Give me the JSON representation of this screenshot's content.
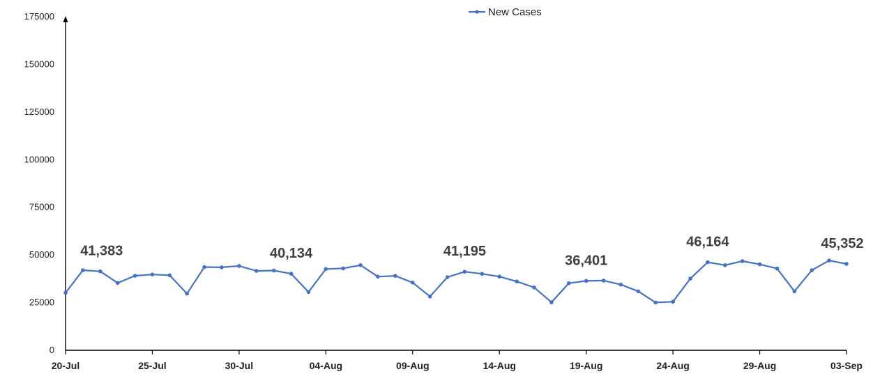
{
  "chart_data": {
    "type": "line",
    "legend": {
      "position": "top-center",
      "label": "New Cases"
    },
    "ylim": [
      0,
      175000
    ],
    "y_ticks": [
      "0",
      "25000",
      "50000",
      "75000",
      "100000",
      "125000",
      "150000",
      "175000"
    ],
    "y_tick_values": [
      0,
      25000,
      50000,
      75000,
      100000,
      125000,
      150000,
      175000
    ],
    "x_ticks": [
      "20-Jul",
      "25-Jul",
      "30-Jul",
      "04-Aug",
      "09-Aug",
      "14-Aug",
      "19-Aug",
      "24-Aug",
      "29-Aug",
      "03-Sep"
    ],
    "x_tick_indices": [
      0,
      5,
      10,
      15,
      20,
      25,
      30,
      35,
      40,
      45
    ],
    "grid": false,
    "x": [
      "20-Jul",
      "21-Jul",
      "22-Jul",
      "23-Jul",
      "24-Jul",
      "25-Jul",
      "26-Jul",
      "27-Jul",
      "28-Jul",
      "29-Jul",
      "30-Jul",
      "31-Jul",
      "01-Aug",
      "02-Aug",
      "03-Aug",
      "04-Aug",
      "05-Aug",
      "06-Aug",
      "07-Aug",
      "08-Aug",
      "09-Aug",
      "10-Aug",
      "11-Aug",
      "12-Aug",
      "13-Aug",
      "14-Aug",
      "15-Aug",
      "16-Aug",
      "17-Aug",
      "18-Aug",
      "19-Aug",
      "20-Aug",
      "21-Aug",
      "22-Aug",
      "23-Aug",
      "24-Aug",
      "25-Aug",
      "26-Aug",
      "27-Aug",
      "28-Aug",
      "29-Aug",
      "30-Aug",
      "31-Aug",
      "01-Sep",
      "02-Sep",
      "03-Sep"
    ],
    "series": [
      {
        "name": "New Cases",
        "color": "#4472C4",
        "values": [
          30093,
          42015,
          41383,
          35342,
          39097,
          39742,
          39361,
          29689,
          43654,
          43509,
          44230,
          41649,
          41831,
          40134,
          30549,
          42625,
          42982,
          44643,
          38628,
          39070,
          35499,
          28204,
          38353,
          41195,
          40120,
          38667,
          36083,
          32937,
          25166,
          35178,
          36401,
          36571,
          34457,
          30948,
          25072,
          25467,
          37593,
          46164,
          44658,
          46759,
          45083,
          42909,
          30941,
          41965,
          47092,
          45352
        ]
      }
    ],
    "annotations": [
      {
        "index": 2,
        "text": "41,383"
      },
      {
        "index": 13,
        "text": "40,134"
      },
      {
        "index": 23,
        "text": "41,195"
      },
      {
        "index": 30,
        "text": "36,401"
      },
      {
        "index": 37,
        "text": "46,164"
      },
      {
        "index": 45,
        "text": "45,352"
      }
    ]
  }
}
